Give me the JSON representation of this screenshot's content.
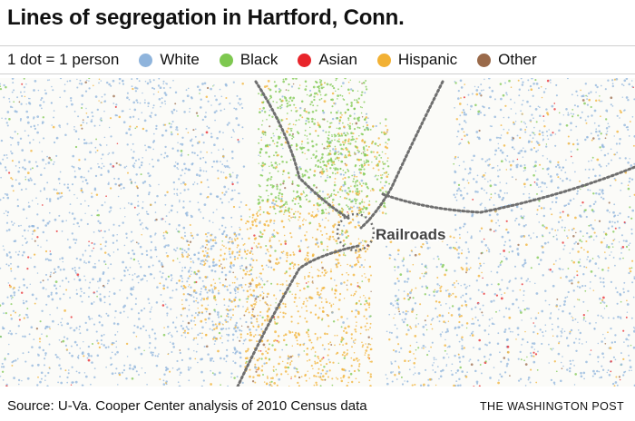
{
  "title": "Lines of segregation in Hartford, Conn.",
  "legend": {
    "scale": "1 dot = 1 person",
    "items": [
      {
        "label": "White",
        "color": "#8fb4dc"
      },
      {
        "label": "Black",
        "color": "#7ec850"
      },
      {
        "label": "Asian",
        "color": "#e8252b"
      },
      {
        "label": "Hispanic",
        "color": "#f2b134"
      },
      {
        "label": "Other",
        "color": "#9a6a4a"
      }
    ]
  },
  "map": {
    "annotation": "Railroads"
  },
  "source": "Source: U-Va. Cooper Center analysis of 2010 Census data",
  "credit": "THE WASHINGTON POST"
}
